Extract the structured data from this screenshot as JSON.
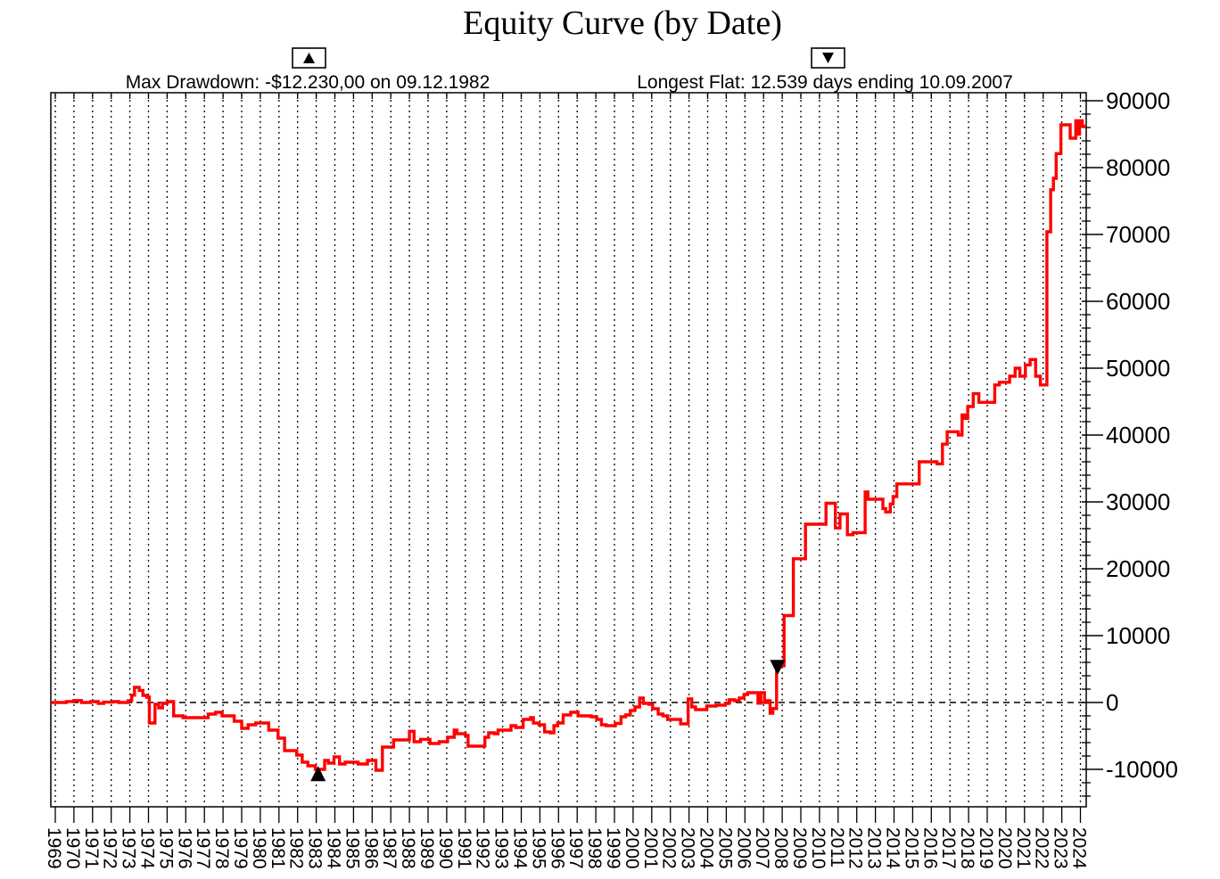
{
  "title": "Equity Curve (by Date)",
  "annotations": {
    "max_drawdown": "Max Drawdown: -$12.230,00 on 09.12.1982",
    "longest_flat": "Longest Flat: 12.539 days ending 10.09.2007"
  },
  "chart_data": {
    "type": "line",
    "title": "Equity Curve (by Date)",
    "line_style": "step-after",
    "grid": "vertical-dashed",
    "zero_line": true,
    "legend_position": "none",
    "xlim": [
      1968.76,
      2024.3
    ],
    "ylim": [
      -15600,
      91200
    ],
    "y_minor_step": 2000,
    "x_ticks": [
      1969,
      1970,
      1971,
      1972,
      1973,
      1974,
      1975,
      1976,
      1977,
      1978,
      1979,
      1980,
      1981,
      1982,
      1983,
      1984,
      1985,
      1986,
      1987,
      1988,
      1989,
      1990,
      1991,
      1992,
      1993,
      1994,
      1995,
      1996,
      1997,
      1998,
      1999,
      2000,
      2001,
      2002,
      2003,
      2004,
      2005,
      2006,
      2007,
      2008,
      2009,
      2010,
      2011,
      2012,
      2013,
      2014,
      2015,
      2016,
      2017,
      2018,
      2019,
      2020,
      2021,
      2022,
      2023,
      2024
    ],
    "y_ticks": [
      90000,
      80000,
      70000,
      60000,
      50000,
      40000,
      30000,
      20000,
      10000,
      0,
      -10000
    ],
    "series": [
      {
        "name": "Equity",
        "color": "#ff0000",
        "points": [
          [
            1968.76,
            0
          ],
          [
            1969.6,
            150
          ],
          [
            1970.0,
            300
          ],
          [
            1970.4,
            0
          ],
          [
            1970.9,
            150
          ],
          [
            1971.3,
            -150
          ],
          [
            1971.6,
            50
          ],
          [
            1972.1,
            150
          ],
          [
            1972.4,
            0
          ],
          [
            1972.9,
            250
          ],
          [
            1973.1,
            1100
          ],
          [
            1973.25,
            2270
          ],
          [
            1973.5,
            1800
          ],
          [
            1973.7,
            1070
          ],
          [
            1973.9,
            800
          ],
          [
            1974.05,
            -3070
          ],
          [
            1974.35,
            -270
          ],
          [
            1974.55,
            -800
          ],
          [
            1974.75,
            -130
          ],
          [
            1975.0,
            130
          ],
          [
            1975.35,
            -2000
          ],
          [
            1975.85,
            -2270
          ],
          [
            1977.2,
            -1730
          ],
          [
            1977.6,
            -1470
          ],
          [
            1977.95,
            -2000
          ],
          [
            1978.6,
            -2800
          ],
          [
            1979.0,
            -3870
          ],
          [
            1979.35,
            -3330
          ],
          [
            1979.75,
            -3070
          ],
          [
            1980.45,
            -4130
          ],
          [
            1980.95,
            -5330
          ],
          [
            1981.3,
            -7200
          ],
          [
            1981.95,
            -7870
          ],
          [
            1982.25,
            -8930
          ],
          [
            1982.55,
            -9470
          ],
          [
            1982.95,
            -10000
          ],
          [
            1983.45,
            -8670
          ],
          [
            1983.65,
            -9070
          ],
          [
            1983.95,
            -8130
          ],
          [
            1984.25,
            -9200
          ],
          [
            1984.55,
            -8930
          ],
          [
            1985.25,
            -9200
          ],
          [
            1985.75,
            -8670
          ],
          [
            1986.2,
            -10130
          ],
          [
            1986.55,
            -6670
          ],
          [
            1987.15,
            -5600
          ],
          [
            1988.0,
            -4300
          ],
          [
            1988.25,
            -5870
          ],
          [
            1988.6,
            -5500
          ],
          [
            1989.1,
            -6130
          ],
          [
            1989.6,
            -5870
          ],
          [
            1990.05,
            -5200
          ],
          [
            1990.4,
            -4130
          ],
          [
            1990.55,
            -4670
          ],
          [
            1991.0,
            -4930
          ],
          [
            1991.15,
            -6530
          ],
          [
            1992.05,
            -5200
          ],
          [
            1992.25,
            -4530
          ],
          [
            1992.55,
            -4670
          ],
          [
            1992.75,
            -4130
          ],
          [
            1993.45,
            -3470
          ],
          [
            1993.7,
            -3730
          ],
          [
            1994.1,
            -2530
          ],
          [
            1994.5,
            -2270
          ],
          [
            1994.65,
            -3070
          ],
          [
            1994.95,
            -3330
          ],
          [
            1995.25,
            -4400
          ],
          [
            1995.55,
            -4530
          ],
          [
            1995.75,
            -3470
          ],
          [
            1995.95,
            -3070
          ],
          [
            1996.25,
            -1870
          ],
          [
            1996.65,
            -1470
          ],
          [
            1997.05,
            -2000
          ],
          [
            1997.75,
            -2130
          ],
          [
            1998.05,
            -2530
          ],
          [
            1998.3,
            -3330
          ],
          [
            1998.55,
            -3470
          ],
          [
            1999.05,
            -3130
          ],
          [
            1999.35,
            -2130
          ],
          [
            1999.6,
            -1870
          ],
          [
            1999.85,
            -1200
          ],
          [
            2000.1,
            -670
          ],
          [
            2000.35,
            670
          ],
          [
            2000.55,
            -130
          ],
          [
            2000.85,
            -270
          ],
          [
            2001.05,
            -930
          ],
          [
            2001.35,
            -1730
          ],
          [
            2001.6,
            -2000
          ],
          [
            2001.85,
            -2530
          ],
          [
            2002.55,
            -3200
          ],
          [
            2002.95,
            530
          ],
          [
            2003.15,
            -670
          ],
          [
            2003.35,
            -1070
          ],
          [
            2003.95,
            -530
          ],
          [
            2004.45,
            -400
          ],
          [
            2004.95,
            -130
          ],
          [
            2005.15,
            400
          ],
          [
            2005.45,
            270
          ],
          [
            2005.7,
            670
          ],
          [
            2005.95,
            1200
          ],
          [
            2006.15,
            1470
          ],
          [
            2006.7,
            -100
          ],
          [
            2006.85,
            1470
          ],
          [
            2007.05,
            0
          ],
          [
            2007.2,
            270
          ],
          [
            2007.35,
            -1600
          ],
          [
            2007.5,
            -900
          ],
          [
            2007.7,
            5500
          ],
          [
            2008.1,
            13000
          ],
          [
            2008.6,
            21500
          ],
          [
            2009.25,
            26670
          ],
          [
            2010.35,
            29800
          ],
          [
            2010.85,
            26100
          ],
          [
            2011.1,
            28200
          ],
          [
            2011.5,
            25100
          ],
          [
            2011.8,
            25400
          ],
          [
            2012.45,
            31500
          ],
          [
            2012.6,
            30400
          ],
          [
            2013.4,
            29000
          ],
          [
            2013.55,
            28500
          ],
          [
            2013.8,
            29700
          ],
          [
            2013.95,
            30800
          ],
          [
            2014.15,
            32700
          ],
          [
            2015.35,
            36000
          ],
          [
            2016.3,
            35700
          ],
          [
            2016.6,
            38640
          ],
          [
            2016.85,
            40500
          ],
          [
            2017.45,
            40000
          ],
          [
            2017.65,
            43000
          ],
          [
            2017.8,
            42500
          ],
          [
            2017.95,
            44270
          ],
          [
            2018.25,
            46180
          ],
          [
            2018.55,
            44900
          ],
          [
            2019.4,
            47500
          ],
          [
            2019.65,
            47900
          ],
          [
            2020.2,
            48800
          ],
          [
            2020.5,
            50000
          ],
          [
            2020.75,
            48800
          ],
          [
            2021.05,
            50500
          ],
          [
            2021.3,
            51300
          ],
          [
            2021.6,
            48800
          ],
          [
            2021.85,
            47500
          ],
          [
            2022.2,
            70400
          ],
          [
            2022.4,
            76700
          ],
          [
            2022.55,
            78400
          ],
          [
            2022.7,
            82100
          ],
          [
            2022.95,
            86400
          ],
          [
            2023.45,
            84400
          ],
          [
            2023.75,
            87000
          ],
          [
            2023.85,
            85000
          ],
          [
            2023.95,
            87000
          ],
          [
            2024.1,
            86200
          ],
          [
            2024.3,
            86200
          ]
        ]
      }
    ],
    "markers": [
      {
        "shape": "up-triangle",
        "x": 1983.1,
        "y": -10700,
        "annotation": "max_drawdown"
      },
      {
        "shape": "down-triangle",
        "x": 2007.75,
        "y": 5300,
        "annotation": "longest_flat"
      }
    ]
  }
}
